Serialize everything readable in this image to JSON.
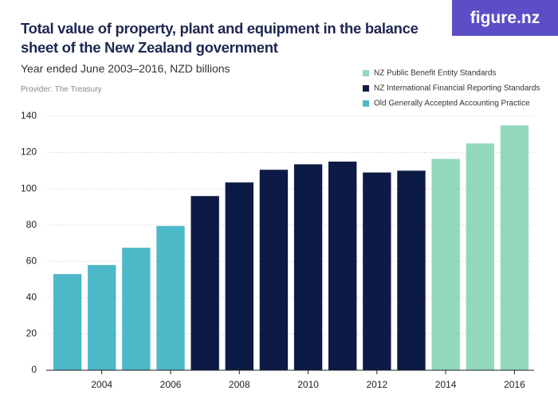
{
  "logo": "figure.nz",
  "chart_data": {
    "type": "bar",
    "title": "Total value of property, plant and equipment in the balance sheet of the New Zealand government",
    "subtitle": "Year ended June 2003–2016, NZD billions",
    "provider": "Provider: The Treasury",
    "categories": [
      null,
      "2004",
      null,
      "2006",
      null,
      "2008",
      null,
      "2010",
      null,
      "2012",
      null,
      "2014",
      null,
      "2016"
    ],
    "series": [
      {
        "name": "NZ Public Benefit Entity Standards",
        "color": "#93d8bb",
        "values": [
          null,
          null,
          null,
          null,
          null,
          null,
          null,
          null,
          null,
          null,
          null,
          116.5,
          125,
          135
        ]
      },
      {
        "name": "NZ International Financial Reporting Standards",
        "color": "#0c1a45",
        "values": [
          null,
          null,
          null,
          null,
          96,
          103.5,
          110.5,
          113.5,
          115,
          109,
          110,
          null,
          null,
          null
        ]
      },
      {
        "name": "Old Generally Accepted Accounting Practice",
        "color": "#4db8c8",
        "values": [
          53,
          58,
          67.5,
          79.5,
          null,
          null,
          null,
          null,
          null,
          null,
          null,
          null,
          null,
          null
        ]
      }
    ],
    "ylim": [
      0,
      140
    ],
    "yticks": [
      0,
      20,
      40,
      60,
      80,
      100,
      120,
      140
    ],
    "grid": true,
    "legend": "top-right"
  }
}
